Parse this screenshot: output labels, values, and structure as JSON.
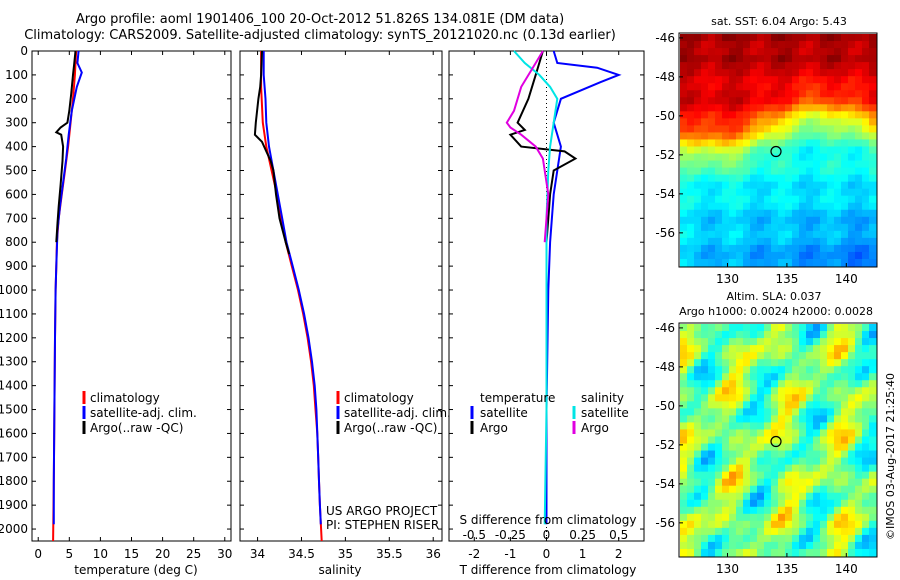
{
  "title_line1": "Argo profile: aoml 1901406_100 20-Oct-2012 51.826S 134.081E (DM data)",
  "title_line2": "Climatology: CARS2009. Satellite-adjusted climatology: synTS_20121020.nc (0.13d earlier)",
  "colors": {
    "climatology": "#ff0000",
    "satellite": "#0000ff",
    "argo": "#000000",
    "sal_satellite": "#00e5e5",
    "sal_argo": "#e000e0"
  },
  "chart_data": [
    {
      "type": "line",
      "name": "temperature-profile",
      "xlabel": "temperature (deg C)",
      "xlim": [
        -1,
        31
      ],
      "ylim": [
        2050,
        0
      ],
      "x_ticks": [
        0,
        5,
        10,
        15,
        20,
        25,
        30
      ],
      "y_ticks": [
        0,
        100,
        200,
        300,
        400,
        500,
        600,
        700,
        800,
        900,
        1000,
        1100,
        1200,
        1300,
        1400,
        1500,
        1600,
        1700,
        1800,
        1900,
        2000
      ],
      "legend": [
        "climatology",
        "satellite-adj. clim.",
        "Argo(..raw -QC)"
      ],
      "series": [
        {
          "name": "climatology",
          "color": "#ff0000",
          "points": [
            [
              6.1,
              0
            ],
            [
              6.0,
              50
            ],
            [
              5.9,
              100
            ],
            [
              5.6,
              200
            ],
            [
              5.2,
              300
            ],
            [
              4.8,
              400
            ],
            [
              4.3,
              500
            ],
            [
              3.8,
              600
            ],
            [
              3.3,
              700
            ],
            [
              3.0,
              800
            ],
            [
              2.9,
              900
            ],
            [
              2.8,
              1000
            ],
            [
              2.7,
              1200
            ],
            [
              2.6,
              1500
            ],
            [
              2.5,
              1800
            ],
            [
              2.4,
              2050
            ]
          ]
        },
        {
          "name": "satellite-adj. clim.",
          "color": "#0000ff",
          "points": [
            [
              6.5,
              0
            ],
            [
              6.3,
              50
            ],
            [
              7.0,
              90
            ],
            [
              6.2,
              150
            ],
            [
              5.4,
              250
            ],
            [
              4.9,
              350
            ],
            [
              4.5,
              450
            ],
            [
              4.0,
              550
            ],
            [
              3.5,
              650
            ],
            [
              3.1,
              750
            ],
            [
              2.9,
              900
            ],
            [
              2.8,
              1000
            ],
            [
              2.7,
              1200
            ],
            [
              2.6,
              1500
            ],
            [
              2.5,
              1800
            ],
            [
              2.5,
              1980
            ]
          ]
        },
        {
          "name": "Argo(..raw -QC)",
          "color": "#000000",
          "points": [
            [
              6.0,
              0
            ],
            [
              5.8,
              50
            ],
            [
              5.6,
              100
            ],
            [
              5.3,
              180
            ],
            [
              5.0,
              250
            ],
            [
              4.7,
              300
            ],
            [
              3.6,
              320
            ],
            [
              2.9,
              340
            ],
            [
              3.7,
              350
            ],
            [
              4.0,
              400
            ],
            [
              3.9,
              460
            ],
            [
              3.6,
              560
            ],
            [
              3.3,
              650
            ],
            [
              3.1,
              720
            ],
            [
              2.9,
              800
            ]
          ]
        }
      ]
    },
    {
      "type": "line",
      "name": "salinity-profile",
      "xlabel": "salinity",
      "xlim": [
        33.8,
        36.1
      ],
      "ylim": [
        2050,
        0
      ],
      "x_ticks": [
        34,
        34.5,
        35,
        35.5,
        36
      ],
      "legend": [
        "climatology",
        "satellite-adj. clim.",
        "Argo(..raw -QC)"
      ],
      "annotation": [
        "US ARGO PROJECT",
        "PI: STEPHEN RISER"
      ],
      "series": [
        {
          "name": "climatology",
          "color": "#ff0000",
          "points": [
            [
              34.04,
              0
            ],
            [
              34.04,
              150
            ],
            [
              34.06,
              300
            ],
            [
              34.1,
              400
            ],
            [
              34.16,
              500
            ],
            [
              34.22,
              600
            ],
            [
              34.27,
              700
            ],
            [
              34.32,
              800
            ],
            [
              34.39,
              900
            ],
            [
              34.46,
              1000
            ],
            [
              34.52,
              1100
            ],
            [
              34.57,
              1200
            ],
            [
              34.61,
              1300
            ],
            [
              34.64,
              1400
            ],
            [
              34.66,
              1500
            ],
            [
              34.68,
              1600
            ],
            [
              34.69,
              1700
            ],
            [
              34.7,
              1800
            ],
            [
              34.71,
              1900
            ],
            [
              34.73,
              2050
            ]
          ]
        },
        {
          "name": "satellite-adj. clim.",
          "color": "#0000ff",
          "points": [
            [
              34.07,
              0
            ],
            [
              34.07,
              100
            ],
            [
              34.09,
              200
            ],
            [
              34.1,
              300
            ],
            [
              34.13,
              400
            ],
            [
              34.18,
              500
            ],
            [
              34.23,
              600
            ],
            [
              34.28,
              700
            ],
            [
              34.33,
              800
            ],
            [
              34.4,
              900
            ],
            [
              34.47,
              1000
            ],
            [
              34.53,
              1100
            ],
            [
              34.58,
              1200
            ],
            [
              34.62,
              1300
            ],
            [
              34.65,
              1400
            ],
            [
              34.67,
              1500
            ],
            [
              34.68,
              1600
            ],
            [
              34.69,
              1700
            ],
            [
              34.7,
              1800
            ],
            [
              34.71,
              1900
            ],
            [
              34.72,
              1980
            ]
          ]
        },
        {
          "name": "Argo(..raw -QC)",
          "color": "#000000",
          "points": [
            [
              34.05,
              0
            ],
            [
              34.04,
              100
            ],
            [
              34.03,
              150
            ],
            [
              34.01,
              200
            ],
            [
              33.98,
              300
            ],
            [
              33.97,
              350
            ],
            [
              34.05,
              380
            ],
            [
              34.1,
              420
            ],
            [
              34.15,
              460
            ],
            [
              34.18,
              500
            ],
            [
              34.21,
              600
            ],
            [
              34.25,
              700
            ],
            [
              34.32,
              800
            ],
            [
              34.36,
              850
            ]
          ]
        }
      ]
    },
    {
      "type": "line",
      "name": "difference-profile",
      "xlabel": "T difference from climatology",
      "xlabel_top": "S difference from climatology",
      "xlim": [
        -2.7,
        2.7
      ],
      "ylim": [
        2050,
        0
      ],
      "x_ticks": [
        -2,
        -1,
        0,
        1,
        2
      ],
      "x_ticks_top": [
        "-0.5",
        "-0.25",
        "0",
        "0.25",
        "0.5"
      ],
      "x_ticks_top_pos": [
        -2,
        -1,
        0,
        1,
        2
      ],
      "legend_temperature": {
        "heading": "temperature",
        "items": [
          "satellite",
          "Argo"
        ]
      },
      "legend_salinity": {
        "heading": "salinity",
        "items": [
          "satellite",
          "Argo"
        ]
      },
      "series": [
        {
          "name": "temperature satellite",
          "color": "#0000ff",
          "points": [
            [
              0.2,
              0
            ],
            [
              0.3,
              50
            ],
            [
              1.4,
              70
            ],
            [
              2.0,
              100
            ],
            [
              1.5,
              130
            ],
            [
              0.4,
              200
            ],
            [
              0.2,
              300
            ],
            [
              0.4,
              400
            ],
            [
              0.3,
              500
            ],
            [
              0.2,
              600
            ],
            [
              0.1,
              800
            ],
            [
              0.05,
              1000
            ],
            [
              0.0,
              1500
            ],
            [
              0.0,
              1980
            ]
          ]
        },
        {
          "name": "temperature Argo",
          "color": "#000000",
          "points": [
            [
              -0.1,
              0
            ],
            [
              -0.2,
              50
            ],
            [
              -0.3,
              100
            ],
            [
              -0.5,
              200
            ],
            [
              -0.8,
              300
            ],
            [
              -0.6,
              330
            ],
            [
              -1.0,
              350
            ],
            [
              -0.7,
              400
            ],
            [
              0.5,
              420
            ],
            [
              0.8,
              450
            ],
            [
              0.2,
              500
            ],
            [
              0.1,
              600
            ],
            [
              0.05,
              700
            ],
            [
              0.0,
              800
            ]
          ]
        },
        {
          "name": "salinity satellite",
          "color": "#00e5e5",
          "points": [
            [
              -0.9,
              0
            ],
            [
              -0.6,
              50
            ],
            [
              -0.2,
              100
            ],
            [
              0.1,
              150
            ],
            [
              0.3,
              200
            ],
            [
              0.2,
              300
            ],
            [
              0.1,
              400
            ],
            [
              0.05,
              500
            ],
            [
              0.0,
              700
            ],
            [
              0.0,
              1000
            ],
            [
              0.0,
              1500
            ],
            [
              -0.05,
              1980
            ]
          ]
        },
        {
          "name": "salinity Argo",
          "color": "#e000e0",
          "points": [
            [
              -0.1,
              0
            ],
            [
              -0.3,
              50
            ],
            [
              -0.7,
              150
            ],
            [
              -0.9,
              250
            ],
            [
              -1.1,
              300
            ],
            [
              -1.0,
              320
            ],
            [
              -0.7,
              350
            ],
            [
              -0.3,
              400
            ],
            [
              -0.1,
              450
            ],
            [
              -0.05,
              500
            ],
            [
              0.05,
              600
            ],
            [
              0.0,
              700
            ],
            [
              -0.05,
              800
            ]
          ]
        }
      ]
    },
    {
      "type": "heatmap",
      "name": "sst-map",
      "title": "sat. SST: 6.04  Argo: 5.43",
      "xlim": [
        126,
        142.5
      ],
      "ylim": [
        -57.7,
        -45.8
      ],
      "x_ticks": [
        130,
        135,
        140
      ],
      "y_ticks": [
        -46,
        -48,
        -50,
        -52,
        -54,
        -56
      ],
      "marker": [
        134.081,
        -51.826
      ]
    },
    {
      "type": "heatmap",
      "name": "sla-map",
      "title_line1": "Altim. SLA: 0.037",
      "title_line2": "Argo h1000: 0.0024 h2000: 0.0028",
      "xlim": [
        126,
        142.5
      ],
      "ylim": [
        -57.7,
        -45.8
      ],
      "x_ticks": [
        130,
        135,
        140
      ],
      "y_ticks": [
        -46,
        -48,
        -50,
        -52,
        -54,
        -56
      ],
      "marker": [
        134.081,
        -51.826
      ]
    }
  ],
  "side_label": "©IMOS 03-Aug-2017 21:25:40"
}
